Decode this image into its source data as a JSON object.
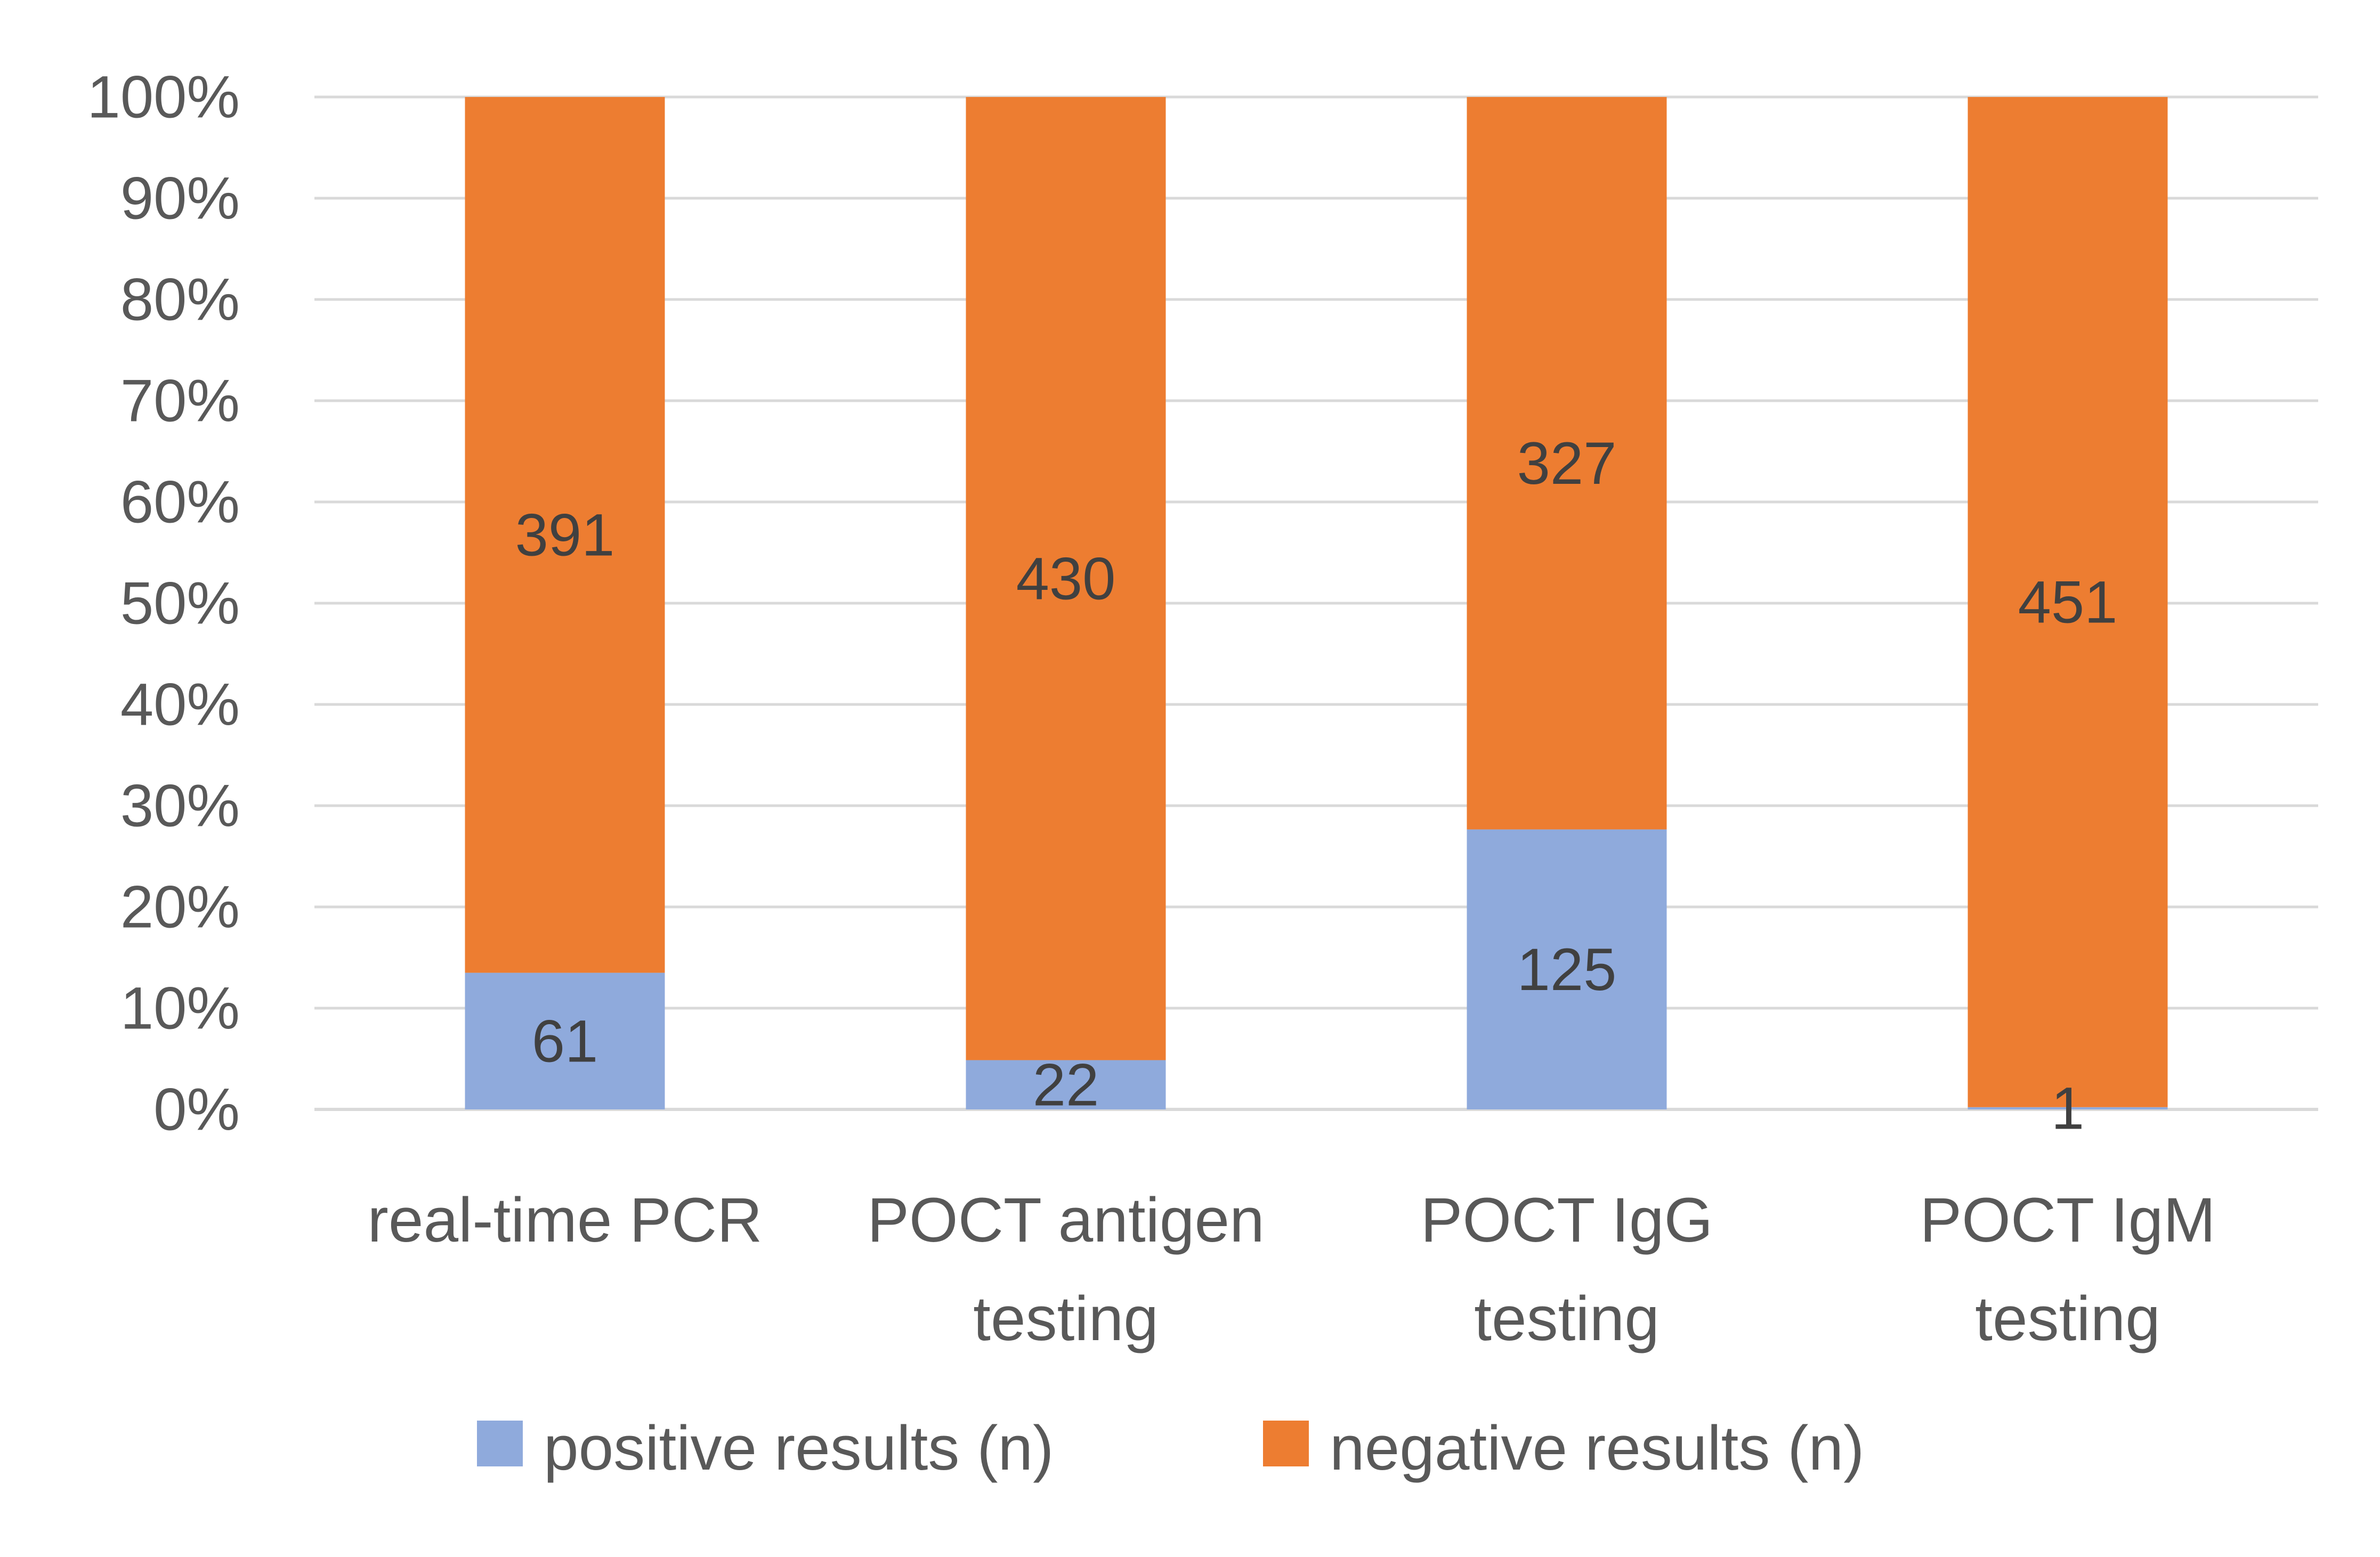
{
  "chart_data": {
    "type": "bar",
    "stacked": "percent",
    "title": "",
    "xlabel": "",
    "ylabel": "",
    "ylim": [
      0,
      100
    ],
    "y_ticks": [
      "0%",
      "10%",
      "20%",
      "30%",
      "40%",
      "50%",
      "60%",
      "70%",
      "80%",
      "90%",
      "100%"
    ],
    "grid": true,
    "legend_position": "bottom",
    "categories": [
      [
        "real-time PCR"
      ],
      [
        "POCT antigen",
        "testing"
      ],
      [
        "POCT IgG",
        "testing"
      ],
      [
        "POCT IgM",
        "testing"
      ]
    ],
    "series": [
      {
        "name": "positive results (n)",
        "color": "#8faadc",
        "values": [
          61,
          22,
          125,
          1
        ]
      },
      {
        "name": "negative results (n)",
        "color": "#ed7d31",
        "values": [
          391,
          430,
          327,
          451
        ]
      }
    ],
    "colors": {
      "grid": "#d9d9d9",
      "tick_text": "#595959",
      "data_label": "#404040"
    }
  }
}
